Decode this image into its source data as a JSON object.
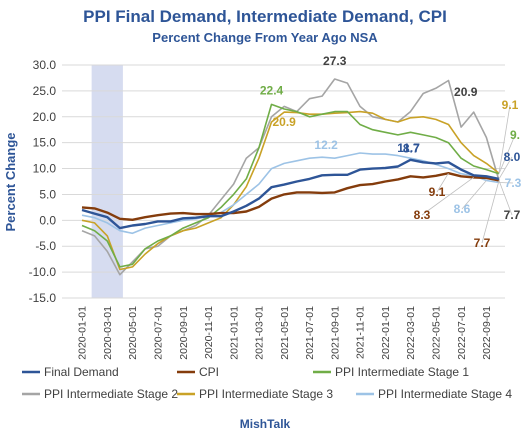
{
  "chart_data": {
    "type": "line",
    "title": "PPI Final Demand, Intermediate Demand, CPI",
    "subtitle": "Percent Change From Year Ago NSA",
    "ylabel": "Percent Change",
    "ylim": [
      -15,
      30
    ],
    "yticks": [
      "30.0",
      "25.0",
      "20.0",
      "15.0",
      "10.0",
      "5.0",
      "0.0",
      "-5.0",
      "-10.0",
      "-15.0"
    ],
    "xtick_labels": [
      "2020-01-01",
      "2020-03-01",
      "2020-05-01",
      "2020-07-01",
      "2020-09-01",
      "2020-11-01",
      "2021-01-01",
      "2021-03-01",
      "2021-05-01",
      "2021-07-01",
      "2021-09-01",
      "2021-11-01",
      "2022-01-01",
      "2022-03-01",
      "2022-05-01",
      "2022-07-01",
      "2022-09-01"
    ],
    "x": [
      "2020-01-01",
      "2020-02-01",
      "2020-03-01",
      "2020-04-01",
      "2020-05-01",
      "2020-06-01",
      "2020-07-01",
      "2020-08-01",
      "2020-09-01",
      "2020-10-01",
      "2020-11-01",
      "2020-12-01",
      "2021-01-01",
      "2021-02-01",
      "2021-03-01",
      "2021-04-01",
      "2021-05-01",
      "2021-06-01",
      "2021-07-01",
      "2021-08-01",
      "2021-09-01",
      "2021-10-01",
      "2021-11-01",
      "2021-12-01",
      "2022-01-01",
      "2022-02-01",
      "2022-03-01",
      "2022-04-01",
      "2022-05-01",
      "2022-06-01",
      "2022-07-01",
      "2022-08-01",
      "2022-09-01",
      "2022-10-01"
    ],
    "recession_band": [
      "2020-02-01",
      "2020-04-01"
    ],
    "grid": true,
    "legend_position": "bottom",
    "series": [
      {
        "name": "Final Demand",
        "color": "#2e5597",
        "values": [
          2.0,
          1.3,
          0.6,
          -1.5,
          -1.0,
          -0.7,
          -0.2,
          -0.2,
          0.4,
          0.5,
          0.8,
          0.8,
          1.7,
          2.8,
          4.2,
          6.4,
          6.9,
          7.5,
          8.0,
          8.7,
          8.8,
          8.8,
          9.8,
          10.0,
          10.1,
          10.4,
          11.7,
          11.2,
          11.0,
          11.2,
          9.8,
          8.7,
          8.5,
          8.0
        ]
      },
      {
        "name": "CPI",
        "color": "#843c0c",
        "values": [
          2.5,
          2.3,
          1.5,
          0.3,
          0.1,
          0.6,
          1.0,
          1.3,
          1.4,
          1.2,
          1.2,
          1.4,
          1.4,
          1.7,
          2.6,
          4.2,
          5.0,
          5.4,
          5.4,
          5.3,
          5.4,
          6.2,
          6.8,
          7.0,
          7.5,
          7.9,
          8.5,
          8.3,
          8.6,
          9.1,
          8.5,
          8.3,
          8.2,
          7.7
        ]
      },
      {
        "name": "PPI Intermediate Stage 1",
        "color": "#70ad47",
        "values": [
          -1.0,
          -2.0,
          -4.0,
          -9.0,
          -8.5,
          -5.5,
          -4.0,
          -3.0,
          -1.5,
          -0.5,
          0.5,
          2.5,
          5.0,
          8.0,
          14.0,
          22.4,
          21.5,
          21.0,
          20.0,
          20.5,
          21.0,
          21.0,
          18.5,
          17.5,
          17.0,
          16.5,
          17.0,
          16.5,
          16.0,
          15.0,
          12.0,
          10.5,
          9.8,
          9.0
        ]
      },
      {
        "name": "PPI Intermediate Stage 2",
        "color": "#a5a5a5",
        "values": [
          -2.0,
          -3.0,
          -6.0,
          -10.5,
          -8.0,
          -5.5,
          -5.0,
          -3.0,
          -2.0,
          -1.0,
          1.0,
          4.0,
          7.0,
          12.0,
          14.0,
          20.0,
          22.0,
          21.0,
          23.5,
          24.0,
          27.3,
          26.5,
          22.0,
          20.0,
          19.5,
          19.0,
          21.0,
          24.5,
          25.5,
          27.0,
          18.0,
          20.9,
          16.0,
          7.7
        ]
      },
      {
        "name": "PPI Intermediate Stage 3",
        "color": "#c9a227",
        "values": [
          0.0,
          -0.5,
          -3.0,
          -9.5,
          -9.0,
          -6.5,
          -4.5,
          -3.0,
          -2.0,
          -1.5,
          -0.5,
          0.5,
          3.0,
          6.5,
          12.0,
          19.0,
          20.9,
          20.8,
          20.5,
          20.5,
          20.7,
          20.8,
          21.0,
          20.7,
          19.5,
          19.0,
          19.8,
          20.0,
          19.5,
          18.5,
          15.0,
          12.5,
          11.0,
          9.1
        ]
      },
      {
        "name": "PPI Intermediate Stage 4",
        "color": "#9dc3e6",
        "values": [
          1.0,
          0.5,
          -0.5,
          -2.0,
          -2.5,
          -1.5,
          -1.0,
          -0.5,
          0.0,
          0.3,
          0.8,
          1.5,
          3.0,
          5.0,
          7.0,
          10.0,
          11.0,
          11.5,
          12.0,
          12.2,
          12.0,
          12.5,
          13.0,
          12.8,
          12.8,
          12.5,
          12.0,
          11.5,
          10.8,
          10.0,
          9.0,
          8.6,
          7.7,
          7.3
        ]
      }
    ],
    "annotations": [
      {
        "text": "22.4",
        "series": "PPI Intermediate Stage 1"
      },
      {
        "text": "20.9",
        "series": "PPI Intermediate Stage 3"
      },
      {
        "text": "12.2",
        "series": "PPI Intermediate Stage 4"
      },
      {
        "text": "27.3",
        "series": "PPI Intermediate Stage 2"
      },
      {
        "text": "11.7",
        "series": "Final Demand"
      },
      {
        "text": "8.7",
        "series": "Final Demand"
      },
      {
        "text": "20.9",
        "series": "PPI Intermediate Stage 2"
      },
      {
        "text": "9.1",
        "series": "PPI Intermediate Stage 3"
      },
      {
        "text": "9.",
        "series": "PPI Intermediate Stage 1"
      },
      {
        "text": "8.0",
        "series": "Final Demand"
      },
      {
        "text": "7.3",
        "series": "PPI Intermediate Stage 4"
      },
      {
        "text": "9.1",
        "series": "CPI"
      },
      {
        "text": "8.3",
        "series": "CPI"
      },
      {
        "text": "8.6",
        "series": "PPI Intermediate Stage 4"
      },
      {
        "text": "7.7",
        "series": "PPI Intermediate Stage 2"
      },
      {
        "text": "7.7",
        "series": "CPI"
      }
    ],
    "source": "MishTalk"
  }
}
